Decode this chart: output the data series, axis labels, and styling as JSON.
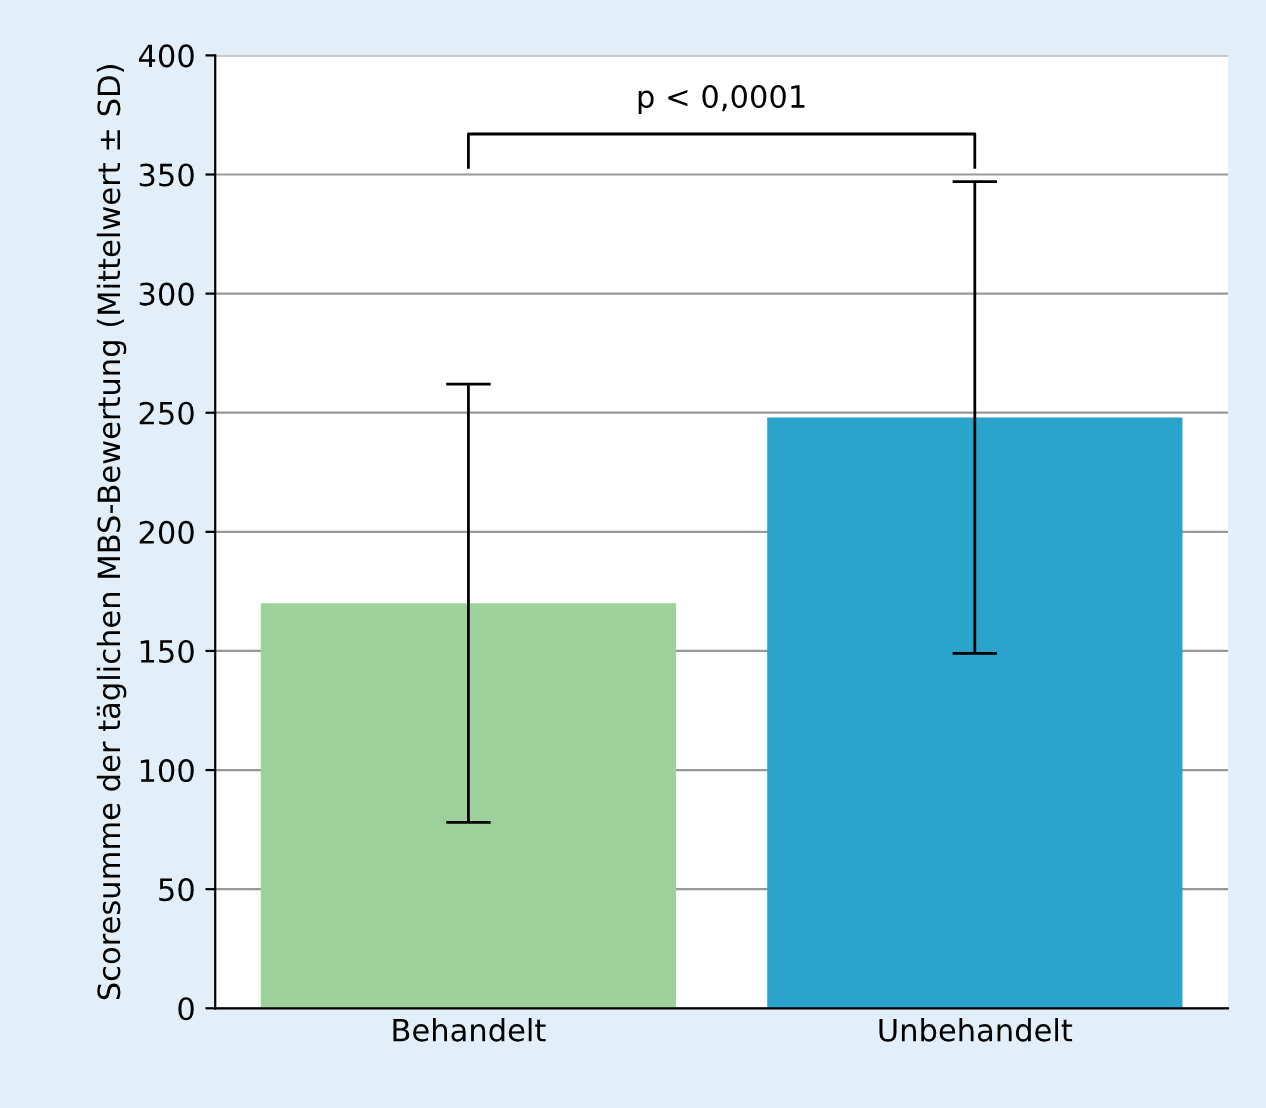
{
  "chart_data": {
    "type": "bar",
    "ylabel": "Scoresumme der täglichen MBS-Bewertung (Mittelwert ± SD)",
    "categories": [
      "Behandelt",
      "Unbehandelt"
    ],
    "values": [
      170,
      248
    ],
    "colors": [
      "#9dd09b",
      "#29a3cc"
    ],
    "errors": [
      92,
      99
    ],
    "ylim": [
      0,
      400
    ],
    "yticks": [
      0,
      50,
      100,
      150,
      200,
      250,
      300,
      350,
      400
    ],
    "grid": "y",
    "annotations": [
      "p < 0,0001"
    ]
  }
}
